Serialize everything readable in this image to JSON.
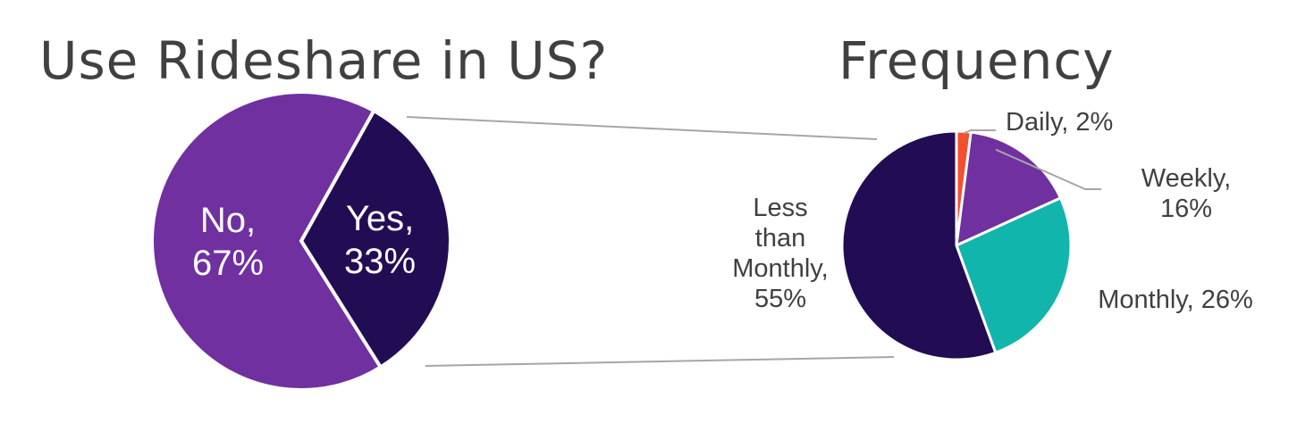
{
  "chart_data": [
    {
      "type": "pie",
      "title": "Use Rideshare in US?",
      "categories": [
        "No",
        "Yes"
      ],
      "values": [
        67,
        33
      ],
      "unit": "%",
      "colors": [
        "#7030a0",
        "#220d54"
      ],
      "label_lines": [
        [
          "No,",
          "67%"
        ],
        [
          "Yes,",
          "33%"
        ]
      ]
    },
    {
      "type": "pie",
      "title": "Frequency",
      "categories": [
        "Daily",
        "Weekly",
        "Monthly",
        "Less than Monthly"
      ],
      "values": [
        2,
        16,
        26,
        55
      ],
      "unit": "%",
      "colors": [
        "#f2502f",
        "#7030a0",
        "#12b5ab",
        "#220d54"
      ],
      "label_lines": [
        [
          "Daily, 2%"
        ],
        [
          "Weekly,",
          "16%"
        ],
        [
          "Monthly, 26%"
        ],
        [
          "Less",
          "than",
          "Monthly,",
          "55%"
        ]
      ]
    }
  ],
  "connector_color": "#a6a6a6"
}
